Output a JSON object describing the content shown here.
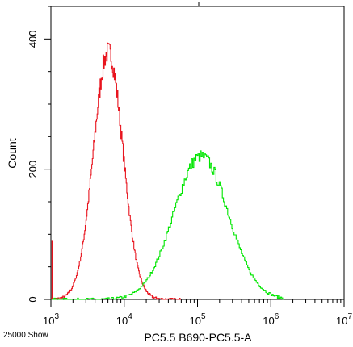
{
  "chart_data": {
    "type": "histogram",
    "title": "",
    "xlabel": "PC5.5 B690-PC5.5-A",
    "ylabel": "Count",
    "x_scale": "log",
    "xlim": [
      1000,
      10000000
    ],
    "ylim": [
      0,
      450
    ],
    "x_ticks": [
      {
        "value": 1000,
        "base": "10",
        "exp": "3"
      },
      {
        "value": 10000,
        "base": "10",
        "exp": "4"
      },
      {
        "value": 100000,
        "base": "10",
        "exp": "5"
      },
      {
        "value": 1000000,
        "base": "10",
        "exp": "6"
      },
      {
        "value": 10000000,
        "base": "10",
        "exp": "7"
      }
    ],
    "y_ticks": [
      0,
      200,
      400
    ],
    "grid": false,
    "footnote": "25000 Show",
    "series": [
      {
        "color": "#e8141e",
        "peak_x": 6000,
        "peak_count": 380,
        "log_sigma": 0.2,
        "x_start": 1000,
        "x_end": 60000
      },
      {
        "color": "#00e600",
        "peak_x": 110000,
        "peak_count": 220,
        "log_sigma": 0.37,
        "x_start": 1000,
        "x_end": 1500000
      }
    ]
  }
}
